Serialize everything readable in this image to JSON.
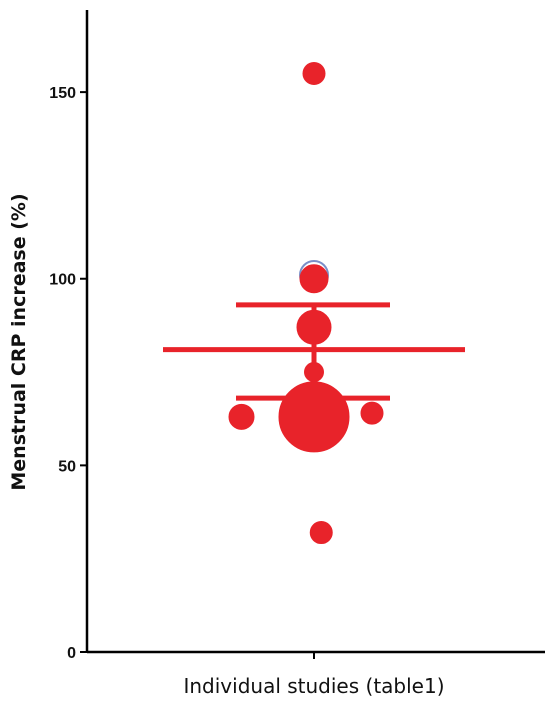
{
  "chart_data": {
    "type": "scatter",
    "title": "",
    "xlabel": "Individual studies (table1)",
    "ylabel": "Menstrual CRP increase (%)",
    "ylim": [
      0,
      172
    ],
    "yticks": [
      0,
      50,
      100,
      150
    ],
    "grid": false,
    "legend": "none",
    "points": [
      {
        "x": 0.0,
        "y": 155,
        "size": 2
      },
      {
        "x": 0.0,
        "y": 101,
        "size": 3
      },
      {
        "x": 0.0,
        "y": 100,
        "size": 3
      },
      {
        "x": 0.0,
        "y": 87,
        "size": 4
      },
      {
        "x": 0.0,
        "y": 75,
        "size": 1.5
      },
      {
        "x": 0.0,
        "y": 63,
        "size": 10
      },
      {
        "x": -0.5,
        "y": 63,
        "size": 2.5
      },
      {
        "x": 0.4,
        "y": 64,
        "size": 2
      },
      {
        "x": 0.05,
        "y": 32,
        "size": 2
      }
    ],
    "summary": {
      "mean": 81,
      "ci_low": 68,
      "ci_high": 93
    },
    "colors": {
      "points": "#e8232a",
      "summary": "#e8232a",
      "axis": "#000000",
      "highlight": "#7b8fc8"
    }
  }
}
